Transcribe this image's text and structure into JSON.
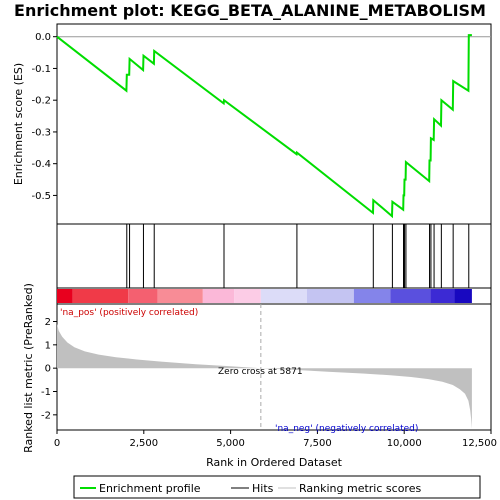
{
  "chart_data": {
    "type": "line",
    "title": "Enrichment plot: KEGG_BETA_ALANINE_METABOLISM",
    "es_panel": {
      "ylabel": "Enrichment score (ES)",
      "ylim": [
        -0.59,
        0.04
      ],
      "yticks": [
        0.0,
        -0.1,
        -0.2,
        -0.3,
        -0.4,
        -0.5
      ],
      "ytick_labels": [
        "0.0",
        "-0.1",
        "-0.2",
        "-0.3",
        "-0.4",
        "-0.5"
      ],
      "series": [
        {
          "name": "Enrichment profile",
          "color": "#00dd00",
          "x": [
            0,
            2000,
            2010,
            2080,
            2090,
            2480,
            2490,
            2790,
            2800,
            4800,
            4810,
            6900,
            6910,
            9100,
            9110,
            9650,
            9660,
            9970,
            9980,
            10000,
            10010,
            10040,
            10050,
            10720,
            10730,
            10760,
            10770,
            10850,
            10860,
            11060,
            11070,
            11400,
            11410,
            11850,
            11860,
            11950
          ],
          "y": [
            0.0,
            -0.17,
            -0.12,
            -0.12,
            -0.07,
            -0.105,
            -0.06,
            -0.085,
            -0.045,
            -0.21,
            -0.2,
            -0.37,
            -0.365,
            -0.555,
            -0.515,
            -0.565,
            -0.52,
            -0.545,
            -0.5,
            -0.5,
            -0.45,
            -0.45,
            -0.395,
            -0.455,
            -0.39,
            -0.39,
            -0.32,
            -0.325,
            -0.26,
            -0.28,
            -0.2,
            -0.23,
            -0.14,
            -0.17,
            0.005,
            0.005
          ]
        }
      ]
    },
    "hits": [
      2010,
      2090,
      2490,
      2800,
      4810,
      6910,
      9110,
      9660,
      9980,
      10010,
      10050,
      10730,
      10770,
      10860,
      11070,
      11410,
      11860
    ],
    "rank_panel": {
      "ylabel": "Ranked list metric (PreRanked)",
      "xlabel": "Rank in Ordered Dataset",
      "xlim": [
        0,
        12500
      ],
      "ylim": [
        -2.65,
        2.75
      ],
      "xticks": [
        0,
        2500,
        5000,
        7500,
        10000,
        12500
      ],
      "xtick_labels": [
        "0",
        "2,500",
        "5,000",
        "7,500",
        "10,000",
        "12,500"
      ],
      "yticks": [
        2,
        1,
        0,
        -1,
        -2
      ],
      "ytick_labels": [
        "2",
        "1",
        "0",
        "-1",
        "-2"
      ],
      "metric_x": [
        0,
        50,
        150,
        300,
        500,
        800,
        1200,
        1700,
        2300,
        3000,
        4000,
        5000,
        5871,
        6800,
        7800,
        8800,
        9600,
        10200,
        10700,
        11100,
        11400,
        11600,
        11750,
        11850,
        11900,
        11930,
        11950
      ],
      "metric_y": [
        1.9,
        1.6,
        1.35,
        1.1,
        0.9,
        0.72,
        0.58,
        0.47,
        0.37,
        0.28,
        0.17,
        0.08,
        0.0,
        -0.07,
        -0.15,
        -0.23,
        -0.3,
        -0.38,
        -0.47,
        -0.58,
        -0.72,
        -0.9,
        -1.1,
        -1.4,
        -1.8,
        -2.2,
        -2.6
      ],
      "zero_cross": 5871,
      "fill_color": "#c0c0c0"
    },
    "annotations": {
      "zero_cross": "Zero cross at 5871",
      "positive": "'na_pos' (positively correlated)",
      "negative": "'na_neg' (negatively correlated)"
    },
    "colorbar": [
      {
        "start": 0,
        "end": 450,
        "color": "#e8001e"
      },
      {
        "start": 450,
        "end": 2050,
        "color": "#f03a48"
      },
      {
        "start": 2050,
        "end": 2900,
        "color": "#f46070"
      },
      {
        "start": 2900,
        "end": 4200,
        "color": "#f88c96"
      },
      {
        "start": 4200,
        "end": 5100,
        "color": "#fbb8d8"
      },
      {
        "start": 5100,
        "end": 5871,
        "color": "#fccce6"
      },
      {
        "start": 5871,
        "end": 7200,
        "color": "#dcdcf8"
      },
      {
        "start": 7200,
        "end": 8550,
        "color": "#c4c4f2"
      },
      {
        "start": 8550,
        "end": 9600,
        "color": "#8484ea"
      },
      {
        "start": 9600,
        "end": 10750,
        "color": "#5a50de"
      },
      {
        "start": 10750,
        "end": 11450,
        "color": "#3c2ad4"
      },
      {
        "start": 11450,
        "end": 11950,
        "color": "#1808c0"
      }
    ],
    "legend": [
      {
        "label": "Enrichment profile",
        "color": "#00dd00",
        "kind": "line"
      },
      {
        "label": "Hits",
        "color": "#000000",
        "kind": "line"
      },
      {
        "label": "Ranking metric scores",
        "color": "#c0c0c0",
        "kind": "line"
      }
    ]
  }
}
